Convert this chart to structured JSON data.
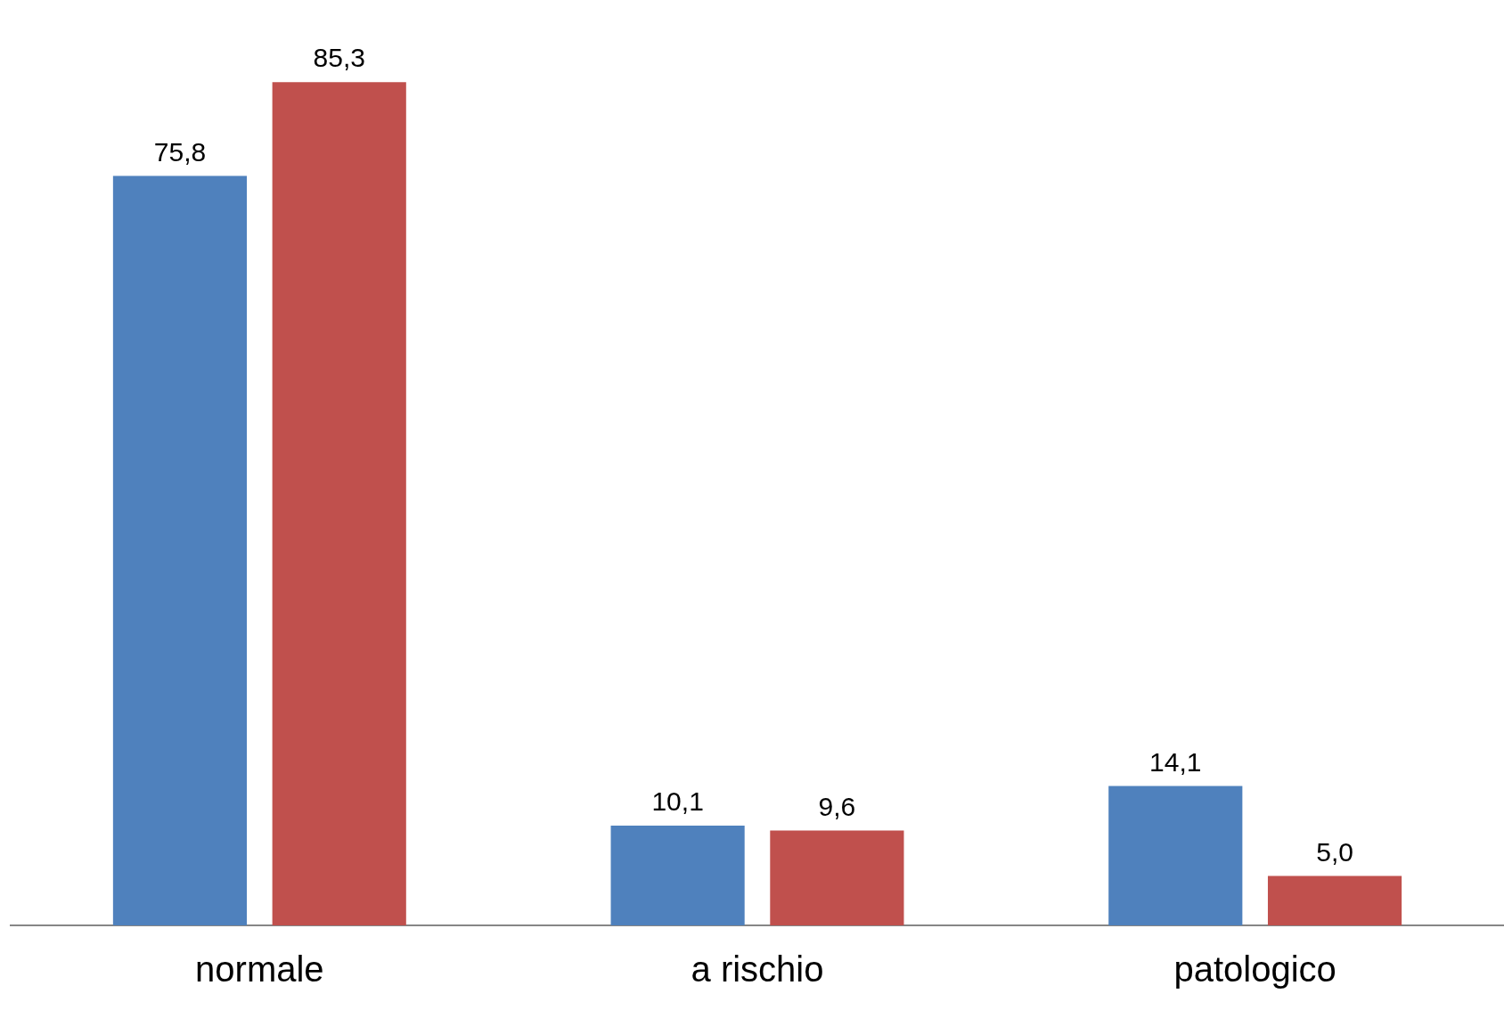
{
  "chart_data": {
    "type": "bar",
    "categories": [
      "normale",
      "a rischio",
      "patologico"
    ],
    "series": [
      {
        "color": "#4f81bd",
        "values": [
          75.8,
          10.1,
          14.1
        ],
        "value_labels": [
          "75,8",
          "10,1",
          "14,1"
        ]
      },
      {
        "color": "#c0504d",
        "values": [
          85.3,
          9.6,
          5.0
        ],
        "value_labels": [
          "85,3",
          "9,6",
          "5,0"
        ]
      }
    ],
    "grid": false,
    "legend": false,
    "tick_labels": "x"
  }
}
